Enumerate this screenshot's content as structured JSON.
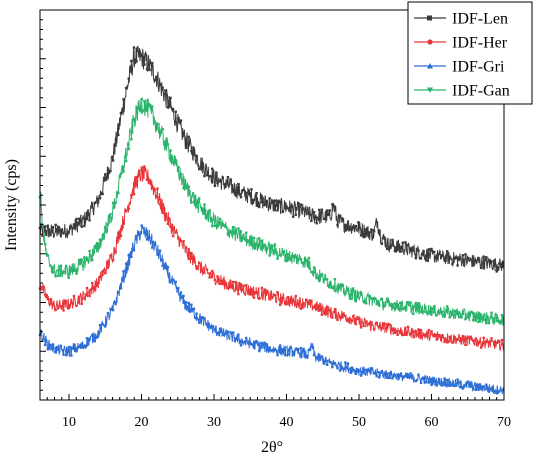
{
  "chart_data": {
    "type": "line",
    "title": "",
    "xlabel": "2θ°",
    "ylabel": "Intensity (cps)",
    "xlim": [
      6,
      70
    ],
    "ylim": [
      0,
      100
    ],
    "x_ticks": [
      10,
      20,
      30,
      40,
      50,
      60,
      70
    ],
    "y_tick_labels_shown": false,
    "grid": false,
    "legend_position": "top-right",
    "series": [
      {
        "name": "IDF-Len",
        "color": "#3a3a3a",
        "marker": "square",
        "points": [
          [
            6,
            43.5
          ],
          [
            8,
            43
          ],
          [
            10,
            43.5
          ],
          [
            12,
            46
          ],
          [
            14,
            51
          ],
          [
            16,
            62
          ],
          [
            18,
            80
          ],
          [
            19,
            88
          ],
          [
            20,
            88
          ],
          [
            21,
            86
          ],
          [
            22,
            83
          ],
          [
            24,
            75
          ],
          [
            26,
            67
          ],
          [
            28,
            61
          ],
          [
            30,
            57
          ],
          [
            32,
            55
          ],
          [
            34,
            53
          ],
          [
            36,
            51.5
          ],
          [
            38,
            50
          ],
          [
            40,
            49.5
          ],
          [
            42,
            48.5
          ],
          [
            44,
            47
          ],
          [
            46,
            47
          ],
          [
            46.5,
            50
          ],
          [
            47,
            46
          ],
          [
            48,
            45
          ],
          [
            50,
            44
          ],
          [
            52,
            42.5
          ],
          [
            52.5,
            46
          ],
          [
            53,
            42
          ],
          [
            54,
            40
          ],
          [
            56,
            39
          ],
          [
            58,
            38
          ],
          [
            60,
            37
          ],
          [
            62,
            36.5
          ],
          [
            64,
            36
          ],
          [
            66,
            35.5
          ],
          [
            68,
            35
          ],
          [
            70,
            34.5
          ]
        ]
      },
      {
        "name": "IDF-Her",
        "color": "#e8363a",
        "marker": "circle",
        "points": [
          [
            6,
            30
          ],
          [
            7,
            26
          ],
          [
            8,
            24
          ],
          [
            10,
            24.5
          ],
          [
            12,
            26.5
          ],
          [
            14,
            30
          ],
          [
            16,
            37
          ],
          [
            18,
            49
          ],
          [
            19,
            55
          ],
          [
            20,
            58
          ],
          [
            21,
            57
          ],
          [
            22,
            53
          ],
          [
            24,
            45
          ],
          [
            26,
            38.5
          ],
          [
            28,
            34
          ],
          [
            30,
            31.5
          ],
          [
            32,
            29.5
          ],
          [
            34,
            28.5
          ],
          [
            36,
            27.5
          ],
          [
            38,
            26.5
          ],
          [
            40,
            25.5
          ],
          [
            42,
            25
          ],
          [
            44,
            24
          ],
          [
            46,
            22.5
          ],
          [
            48,
            21.5
          ],
          [
            50,
            20
          ],
          [
            52,
            19
          ],
          [
            54,
            18.5
          ],
          [
            56,
            17.5
          ],
          [
            58,
            17
          ],
          [
            60,
            16.5
          ],
          [
            62,
            16
          ],
          [
            64,
            15.5
          ],
          [
            66,
            15
          ],
          [
            68,
            14.5
          ],
          [
            70,
            14
          ]
        ]
      },
      {
        "name": "IDF-Gri",
        "color": "#2d6ed6",
        "marker": "triangle",
        "points": [
          [
            6,
            17.5
          ],
          [
            7,
            14.5
          ],
          [
            8,
            13
          ],
          [
            10,
            12.5
          ],
          [
            12,
            14
          ],
          [
            14,
            17
          ],
          [
            16,
            23
          ],
          [
            18,
            34
          ],
          [
            19,
            40
          ],
          [
            20,
            43.5
          ],
          [
            21,
            42
          ],
          [
            22,
            39
          ],
          [
            24,
            31
          ],
          [
            26,
            24.5
          ],
          [
            28,
            21
          ],
          [
            30,
            18
          ],
          [
            32,
            16.5
          ],
          [
            34,
            15
          ],
          [
            36,
            14
          ],
          [
            38,
            13
          ],
          [
            40,
            12.5
          ],
          [
            42,
            12
          ],
          [
            43,
            11.5
          ],
          [
            43.5,
            14
          ],
          [
            44,
            11
          ],
          [
            46,
            9.5
          ],
          [
            48,
            8.5
          ],
          [
            50,
            7.5
          ],
          [
            52,
            7
          ],
          [
            54,
            6.5
          ],
          [
            56,
            6
          ],
          [
            58,
            5.5
          ],
          [
            60,
            5
          ],
          [
            62,
            4.5
          ],
          [
            64,
            4
          ],
          [
            66,
            3.5
          ],
          [
            68,
            3
          ],
          [
            70,
            2.5
          ]
        ]
      },
      {
        "name": "IDF-Gan",
        "color": "#2bb36b",
        "marker": "down-triangle",
        "points": [
          [
            6,
            54
          ],
          [
            6.5,
            42
          ],
          [
            7,
            36
          ],
          [
            8,
            33
          ],
          [
            10,
            33
          ],
          [
            12,
            35
          ],
          [
            14,
            39
          ],
          [
            16,
            48
          ],
          [
            18,
            64
          ],
          [
            19,
            72
          ],
          [
            20,
            76
          ],
          [
            21,
            74.5
          ],
          [
            22,
            71
          ],
          [
            24,
            63
          ],
          [
            26,
            55
          ],
          [
            28,
            49.5
          ],
          [
            30,
            46
          ],
          [
            32,
            43.5
          ],
          [
            34,
            41.5
          ],
          [
            36,
            40
          ],
          [
            38,
            38.5
          ],
          [
            40,
            37
          ],
          [
            42,
            36
          ],
          [
            43,
            35
          ],
          [
            44,
            32.5
          ],
          [
            46,
            30
          ],
          [
            48,
            28
          ],
          [
            50,
            26.5
          ],
          [
            52,
            25.5
          ],
          [
            54,
            24.5
          ],
          [
            56,
            24
          ],
          [
            58,
            23.5
          ],
          [
            60,
            23
          ],
          [
            62,
            22.5
          ],
          [
            64,
            22
          ],
          [
            66,
            21.5
          ],
          [
            68,
            21
          ],
          [
            70,
            20.5
          ]
        ]
      }
    ]
  }
}
